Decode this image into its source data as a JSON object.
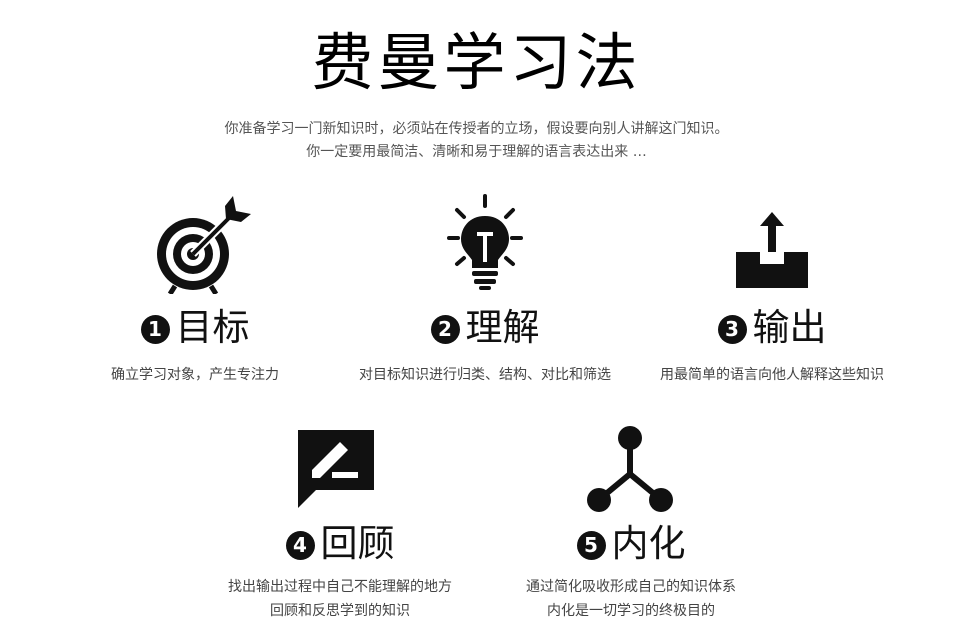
{
  "title": "费曼学习法",
  "intro": {
    "line1": "你准备学习一门新知识时，必须站在传授者的立场，假设要向别人讲解这门知识。",
    "line2": "你一定要用最简洁、清晰和易于理解的语言表达出来 …"
  },
  "steps": [
    {
      "number": "1",
      "title": "目标",
      "icon": "target-icon",
      "desc": [
        "确立学习对象，产生专注力"
      ]
    },
    {
      "number": "2",
      "title": "理解",
      "icon": "lightbulb-icon",
      "desc": [
        "对目标知识进行归类、结构、对比和筛选"
      ]
    },
    {
      "number": "3",
      "title": "输出",
      "icon": "output-tray-icon",
      "desc": [
        "用最简单的语言向他人解释这些知识"
      ]
    },
    {
      "number": "4",
      "title": "回顾",
      "icon": "edit-comment-icon",
      "desc": [
        "找出输出过程中自己不能理解的地方",
        "回顾和反思学到的知识"
      ]
    },
    {
      "number": "5",
      "title": "内化",
      "icon": "network-nodes-icon",
      "desc": [
        "通过简化吸收形成自己的知识体系",
        "内化是一切学习的终极目的"
      ]
    }
  ]
}
